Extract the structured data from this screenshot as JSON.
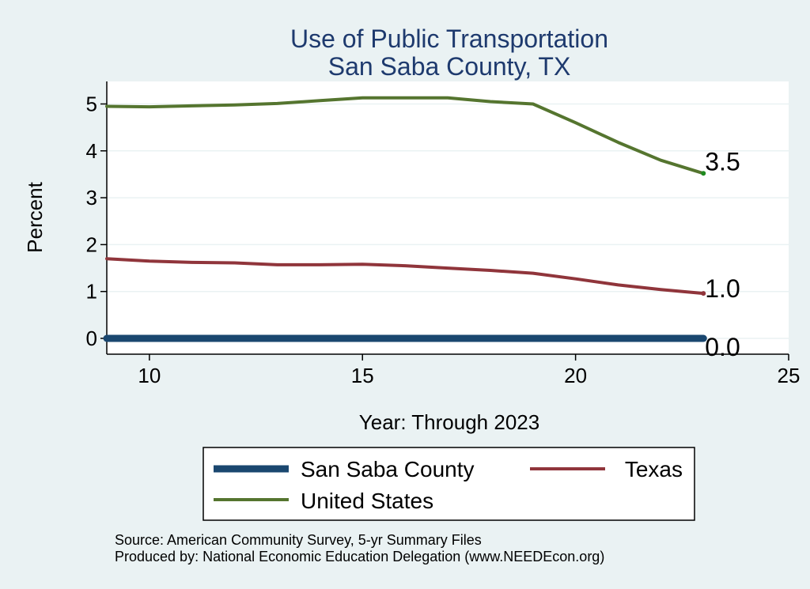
{
  "chart_data": {
    "type": "line",
    "title": [
      "Use of Public Transportation",
      "San Saba County, TX"
    ],
    "xlabel": "Year: Through 2023",
    "ylabel": "Percent",
    "xlim": [
      9,
      25
    ],
    "ylim": [
      0,
      5.2
    ],
    "xticks": [
      "10",
      "15",
      "20",
      "25"
    ],
    "yticks": [
      "0",
      "1",
      "2",
      "3",
      "4",
      "5"
    ],
    "grid": true,
    "legend_position": "bottom",
    "x": [
      9,
      10,
      11,
      12,
      13,
      14,
      15,
      16,
      17,
      18,
      19,
      20,
      21,
      22,
      23
    ],
    "series": [
      {
        "name": "San Saba County",
        "color": "#1a476f",
        "values": [
          0,
          0,
          0,
          0,
          0,
          0,
          0,
          0,
          0,
          0,
          0,
          0,
          0,
          0,
          0
        ],
        "end_label": "0.0"
      },
      {
        "name": "Texas",
        "color": "#90353b",
        "values": [
          1.7,
          1.65,
          1.62,
          1.61,
          1.57,
          1.57,
          1.58,
          1.55,
          1.5,
          1.45,
          1.39,
          1.27,
          1.14,
          1.04,
          0.96
        ],
        "end_label": "1.0"
      },
      {
        "name": "United States",
        "color": "#55752f",
        "values": [
          4.95,
          4.94,
          4.96,
          4.98,
          5.01,
          5.07,
          5.13,
          5.13,
          5.13,
          5.05,
          5.0,
          4.6,
          4.18,
          3.8,
          3.52
        ],
        "end_label": "3.5"
      }
    ],
    "notes": [
      "Source: American Community Survey, 5-yr Summary Files",
      "Produced by: National Economic Education Delegation (www.NEEDEcon.org)"
    ]
  }
}
